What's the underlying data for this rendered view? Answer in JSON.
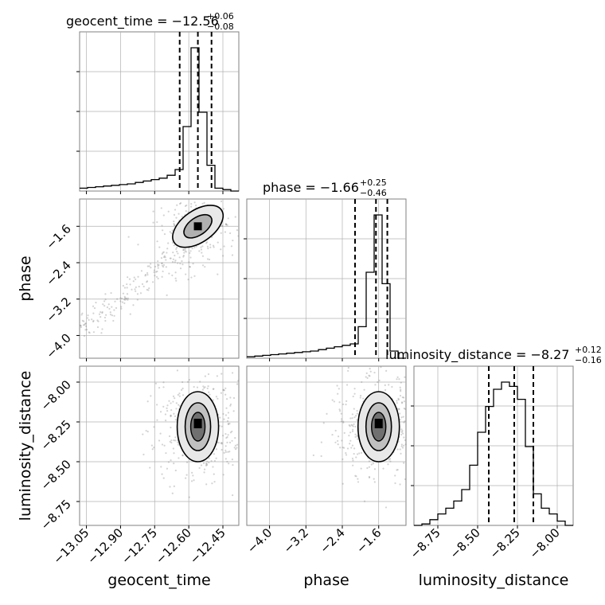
{
  "chart_data": {
    "type": "corner",
    "parameters": [
      "geocent_time",
      "phase",
      "luminosity_distance"
    ],
    "titles": [
      {
        "name": "geocent_time",
        "value": "−12.56",
        "plus": "+0.06",
        "minus": "−0.08"
      },
      {
        "name": "phase",
        "value": "−1.66",
        "plus": "+0.25",
        "minus": "−0.46"
      },
      {
        "name": "luminosity_distance",
        "value": "−8.27",
        "plus": "+0.12",
        "minus": "−0.16"
      }
    ],
    "axes": {
      "geocent_time": {
        "label": "geocent_time",
        "range": [
          -13.08,
          -12.38
        ],
        "ticks": [
          -13.05,
          -12.9,
          -12.75,
          -12.6,
          -12.45
        ],
        "tick_labels": [
          "−13.05",
          "−12.90",
          "−12.75",
          "−12.60",
          "−12.45"
        ]
      },
      "phase": {
        "label": "phase",
        "range": [
          -4.5,
          -1.0
        ],
        "ticks": [
          -4.0,
          -3.2,
          -2.4,
          -1.6
        ],
        "tick_labels": [
          "−4.0",
          "−3.2",
          "−2.4",
          "−1.6"
        ]
      },
      "luminosity_distance": {
        "label": "luminosity_distance",
        "range": [
          -8.9,
          -7.9
        ],
        "ticks": [
          -8.75,
          -8.5,
          -8.25,
          -8.0
        ],
        "tick_labels": [
          "−8.75",
          "−8.50",
          "−8.25",
          "−8.00"
        ]
      }
    },
    "quantile_lines": {
      "geocent_time": [
        -12.64,
        -12.56,
        -12.5
      ],
      "phase": [
        -2.12,
        -1.66,
        -1.41
      ],
      "luminosity_distance": [
        -8.43,
        -8.27,
        -8.15
      ]
    },
    "histograms": {
      "geocent_time": {
        "edges": [
          -13.08,
          -13.045,
          -13.01,
          -12.975,
          -12.94,
          -12.905,
          -12.87,
          -12.835,
          -12.8,
          -12.765,
          -12.73,
          -12.695,
          -12.66,
          -12.625,
          -12.59,
          -12.555,
          -12.52,
          -12.485,
          -12.45,
          -12.415,
          -12.38
        ],
        "counts": [
          0.02,
          0.025,
          0.03,
          0.035,
          0.04,
          0.045,
          0.05,
          0.06,
          0.07,
          0.08,
          0.09,
          0.11,
          0.15,
          0.45,
          1.0,
          0.55,
          0.18,
          0.02,
          0.01,
          0.0
        ]
      },
      "phase": {
        "edges": [
          -4.5,
          -4.325,
          -4.15,
          -3.975,
          -3.8,
          -3.625,
          -3.45,
          -3.275,
          -3.1,
          -2.925,
          -2.75,
          -2.575,
          -2.4,
          -2.225,
          -2.05,
          -1.875,
          -1.7,
          -1.525,
          -1.35,
          -1.175,
          -1.0
        ],
        "counts": [
          0.01,
          0.015,
          0.02,
          0.025,
          0.03,
          0.035,
          0.04,
          0.045,
          0.05,
          0.06,
          0.07,
          0.08,
          0.09,
          0.1,
          0.22,
          0.6,
          1.0,
          0.52,
          0.05,
          0.0
        ]
      },
      "luminosity_distance": {
        "edges": [
          -8.9,
          -8.85,
          -8.8,
          -8.75,
          -8.7,
          -8.65,
          -8.6,
          -8.55,
          -8.5,
          -8.45,
          -8.4,
          -8.35,
          -8.3,
          -8.25,
          -8.2,
          -8.15,
          -8.1,
          -8.05,
          -8.0,
          -7.95,
          -7.9
        ],
        "counts": [
          0.0,
          0.01,
          0.04,
          0.08,
          0.12,
          0.17,
          0.25,
          0.42,
          0.65,
          0.83,
          0.95,
          1.0,
          0.97,
          0.88,
          0.55,
          0.22,
          0.12,
          0.08,
          0.03,
          0.0
        ]
      }
    },
    "density_peaks": {
      "phase_vs_geocent_time": {
        "x": -12.56,
        "y": -1.6
      },
      "luminosity_distance_vs_geocent_time": {
        "x": -12.56,
        "y": -8.28
      },
      "luminosity_distance_vs_phase": {
        "x": -1.6,
        "y": -8.28
      }
    },
    "grid": true,
    "colors": {
      "line": "#000000",
      "grid": "#b0b0b0",
      "points": "#808080"
    }
  }
}
